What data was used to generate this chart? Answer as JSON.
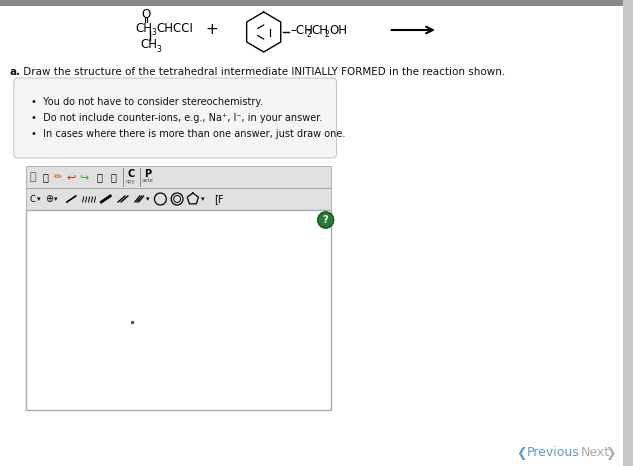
{
  "bg_color": "#c8c8c8",
  "page_bg": "#ffffff",
  "title_a": "a.",
  "title_rest": " Draw the structure of the tetrahedral intermediate INITIALLY FORMED in the reaction shown.",
  "bullet1": "You do not have to consider stereochemistry.",
  "bullet2": "Do not include counter-ions, e.g., Na⁺, I⁻, in your answer.",
  "bullet3": "In cases where there is more than one answer, just draw one.",
  "prev_text": "Previous",
  "next_text": "Next",
  "accent_color": "#5b9bd5",
  "next_color": "#aaaaaa",
  "box_border": "#c8c8c8",
  "box_fill": "#f5f5f5",
  "text_color": "#111111",
  "green_circle_color": "#2a7a30",
  "green_circle_border": "#1a5a20",
  "toolbar_bg": "#e0e0e0",
  "toolbar_border": "#999999",
  "canvas_border": "#aaaaaa"
}
